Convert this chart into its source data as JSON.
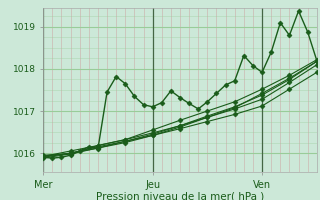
{
  "title": "",
  "xlabel": "Pression niveau de la mer( hPa )",
  "bg_color": "#cce8d8",
  "plot_bg_color": "#cce8d8",
  "line_color": "#1a5c1a",
  "grid_color_h": "#99cc99",
  "grid_color_v": "#cc9999",
  "ylim": [
    1015.55,
    1019.45
  ],
  "yticks": [
    1016,
    1017,
    1018,
    1019
  ],
  "xtick_labels": [
    "Mer",
    "Jeu",
    "Ven"
  ],
  "xtick_positions": [
    0,
    48,
    96
  ],
  "x_max": 120,
  "vline_color": "#446644",
  "series": [
    {
      "x": [
        0,
        4,
        8,
        12,
        16,
        20,
        24,
        28,
        32,
        36,
        40,
        44,
        48,
        52,
        56,
        60,
        64,
        68,
        72,
        76,
        80,
        84,
        88,
        92,
        96,
        100,
        104,
        108,
        112,
        116,
        120
      ],
      "y": [
        1015.9,
        1015.88,
        1015.9,
        1015.95,
        1016.05,
        1016.15,
        1016.1,
        1017.45,
        1017.82,
        1017.65,
        1017.35,
        1017.15,
        1017.1,
        1017.2,
        1017.48,
        1017.32,
        1017.18,
        1017.05,
        1017.22,
        1017.42,
        1017.62,
        1017.72,
        1018.32,
        1018.08,
        1017.92,
        1018.4,
        1019.1,
        1018.8,
        1019.38,
        1018.88,
        1018.2
      ],
      "marker": "D",
      "markersize": 2.5,
      "linewidth": 1.0
    },
    {
      "x": [
        0,
        12,
        24,
        36,
        48,
        60,
        72,
        84,
        96,
        108,
        120
      ],
      "y": [
        1015.92,
        1016.0,
        1016.12,
        1016.28,
        1016.42,
        1016.58,
        1016.75,
        1016.92,
        1017.12,
        1017.52,
        1017.92
      ],
      "marker": "D",
      "markersize": 2.5,
      "linewidth": 0.8
    },
    {
      "x": [
        0,
        12,
        24,
        36,
        48,
        60,
        72,
        84,
        96,
        108,
        120
      ],
      "y": [
        1015.92,
        1016.05,
        1016.18,
        1016.32,
        1016.48,
        1016.65,
        1016.85,
        1017.05,
        1017.28,
        1017.68,
        1018.1
      ],
      "marker": "D",
      "markersize": 2.5,
      "linewidth": 0.8
    },
    {
      "x": [
        0,
        12,
        24,
        36,
        48,
        60,
        72,
        84,
        96,
        108,
        120
      ],
      "y": [
        1015.9,
        1016.0,
        1016.15,
        1016.28,
        1016.45,
        1016.65,
        1016.88,
        1017.1,
        1017.38,
        1017.75,
        1018.18
      ],
      "marker": "D",
      "markersize": 2.5,
      "linewidth": 0.8
    },
    {
      "x": [
        0,
        12,
        24,
        36,
        48,
        60,
        72,
        84,
        96,
        108,
        120
      ],
      "y": [
        1015.88,
        1015.98,
        1016.12,
        1016.25,
        1016.42,
        1016.62,
        1016.85,
        1017.08,
        1017.42,
        1017.78,
        1018.18
      ],
      "marker": "D",
      "markersize": 2.5,
      "linewidth": 0.8
    },
    {
      "x": [
        0,
        12,
        24,
        36,
        48,
        60,
        72,
        84,
        96,
        108,
        120
      ],
      "y": [
        1015.95,
        1015.98,
        1016.18,
        1016.32,
        1016.55,
        1016.78,
        1017.0,
        1017.22,
        1017.52,
        1017.85,
        1018.22
      ],
      "marker": "D",
      "markersize": 2.5,
      "linewidth": 0.8
    }
  ],
  "xlabel_fontsize": 7.5,
  "ytick_fontsize": 6.5,
  "xtick_fontsize": 7.0
}
